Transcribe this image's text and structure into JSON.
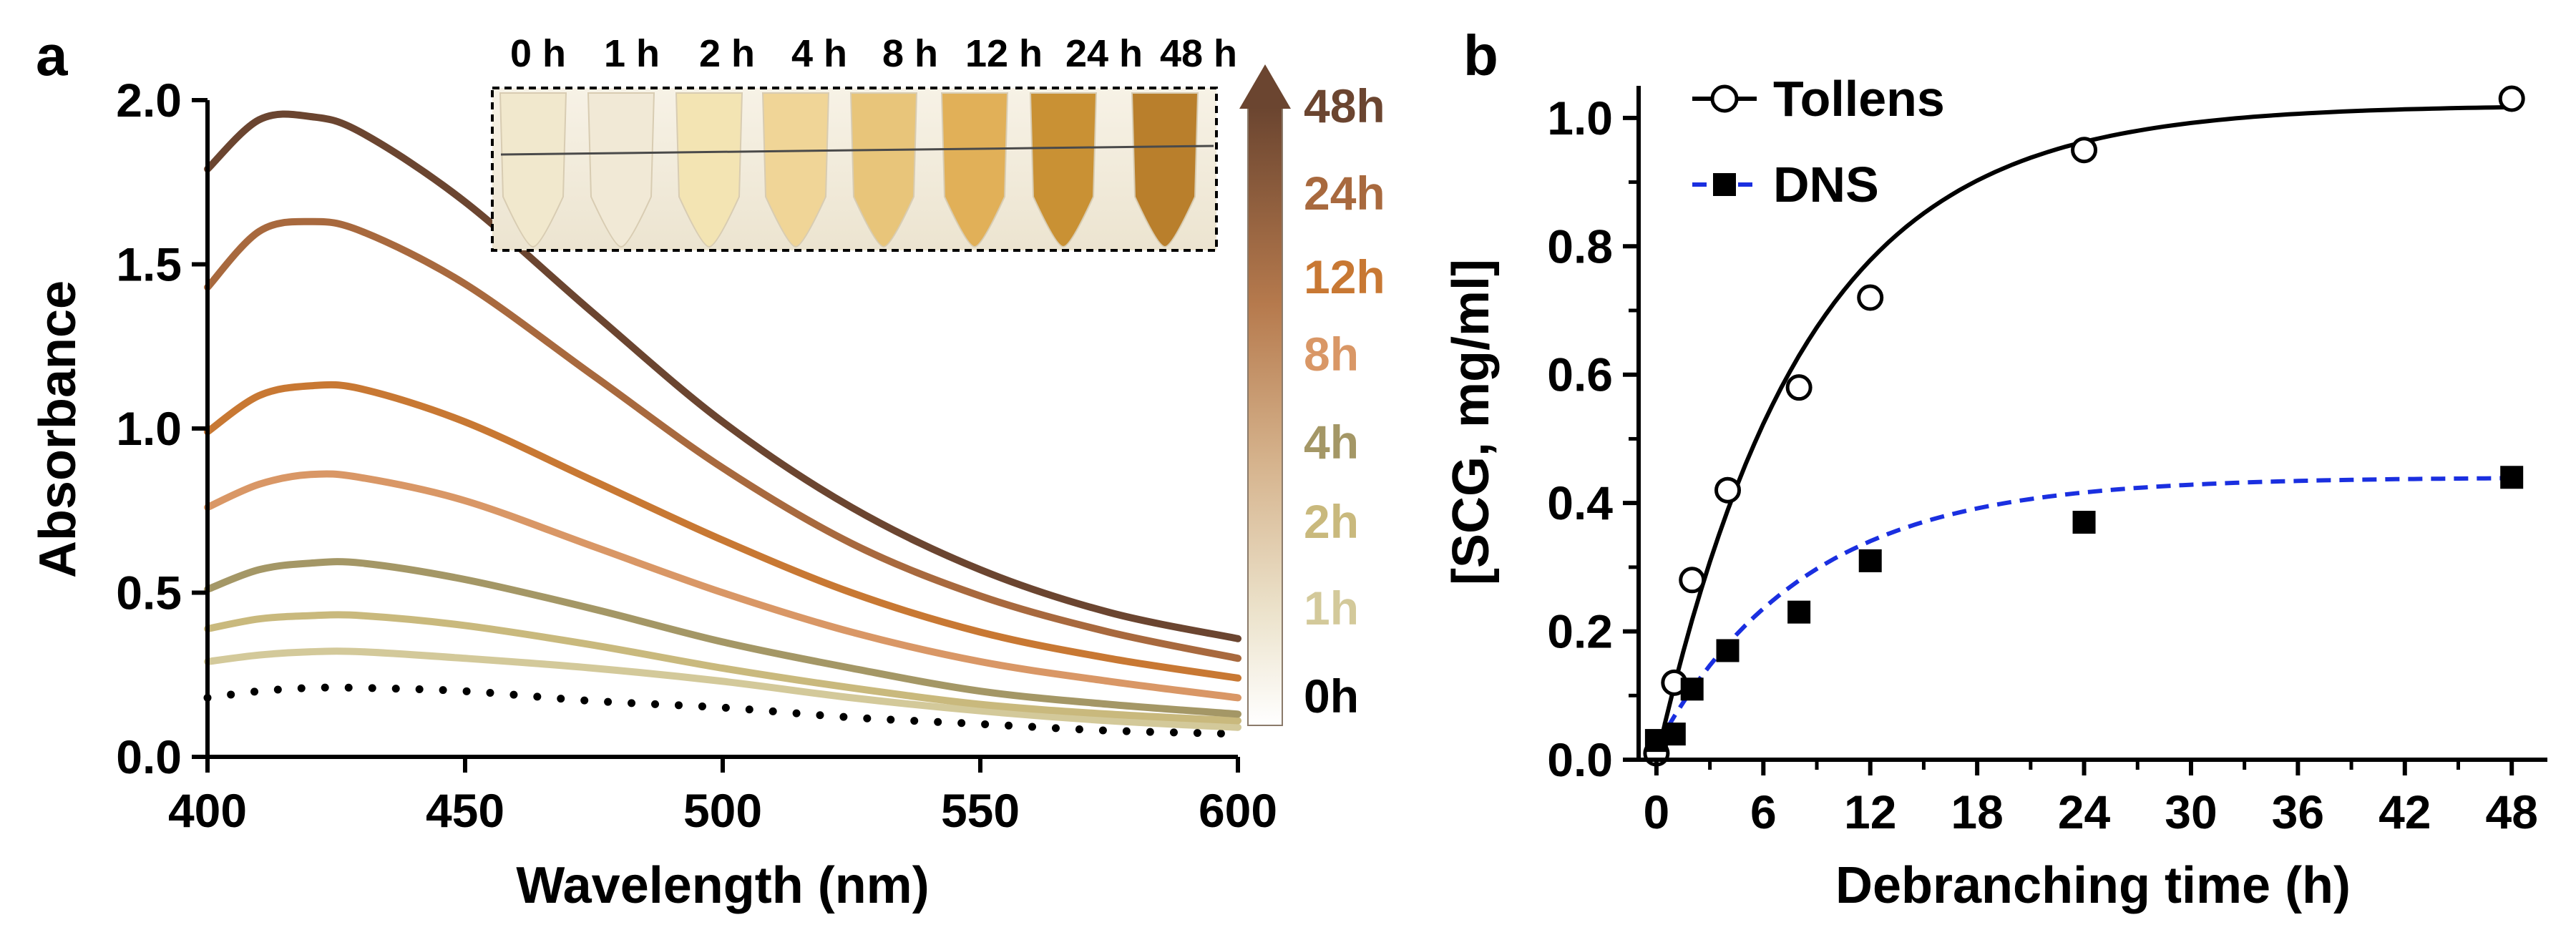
{
  "chart_data": [
    {
      "panel": "a",
      "type": "line",
      "xlabel": "Wavelength (nm)",
      "ylabel": "Absorbance",
      "xlim": [
        400,
        600
      ],
      "ylim": [
        0,
        2.0
      ],
      "xticks": [
        "400",
        "450",
        "500",
        "550",
        "600"
      ],
      "yticks": [
        "0.0",
        "0.5",
        "1.0",
        "1.5",
        "2.0"
      ],
      "x": [
        400,
        410,
        420,
        430,
        450,
        475,
        500,
        525,
        550,
        575,
        600
      ],
      "series": [
        {
          "name": "0h",
          "color": "#000000",
          "style": "dotted",
          "values": [
            0.18,
            0.2,
            0.21,
            0.21,
            0.2,
            0.17,
            0.15,
            0.12,
            0.1,
            0.08,
            0.07
          ]
        },
        {
          "name": "1h",
          "color": "#d3c99a",
          "style": "solid",
          "values": [
            0.29,
            0.31,
            0.32,
            0.32,
            0.3,
            0.27,
            0.23,
            0.18,
            0.14,
            0.11,
            0.09
          ]
        },
        {
          "name": "2h",
          "color": "#c9b97d",
          "style": "solid",
          "values": [
            0.39,
            0.42,
            0.43,
            0.43,
            0.4,
            0.34,
            0.27,
            0.21,
            0.16,
            0.13,
            0.11
          ]
        },
        {
          "name": "4h",
          "color": "#a49766",
          "style": "solid",
          "values": [
            0.51,
            0.57,
            0.59,
            0.59,
            0.54,
            0.45,
            0.35,
            0.27,
            0.2,
            0.16,
            0.13
          ]
        },
        {
          "name": "8h",
          "color": "#d99766",
          "style": "solid",
          "values": [
            0.76,
            0.83,
            0.86,
            0.85,
            0.78,
            0.64,
            0.5,
            0.38,
            0.29,
            0.23,
            0.18
          ]
        },
        {
          "name": "12h",
          "color": "#c87833",
          "style": "solid",
          "values": [
            0.99,
            1.1,
            1.13,
            1.12,
            1.02,
            0.84,
            0.66,
            0.5,
            0.38,
            0.3,
            0.24
          ]
        },
        {
          "name": "24h",
          "color": "#a8693e",
          "style": "solid",
          "values": [
            1.43,
            1.6,
            1.63,
            1.6,
            1.44,
            1.16,
            0.88,
            0.65,
            0.49,
            0.38,
            0.3
          ]
        },
        {
          "name": "48h",
          "color": "#6b4530",
          "style": "solid",
          "values": [
            1.79,
            1.94,
            1.95,
            1.9,
            1.69,
            1.35,
            1.02,
            0.76,
            0.57,
            0.44,
            0.36
          ]
        }
      ],
      "photo_labels": [
        "0 h",
        "1 h",
        "2 h",
        "4 h",
        "8 h",
        "12 h",
        "24 h",
        "48 h"
      ],
      "tube_colors": [
        "#f1e8cd",
        "#f1e9d6",
        "#f3e4b3",
        "#f0d597",
        "#e8c57a",
        "#e1b058",
        "#c99134",
        "#b97f2c"
      ],
      "colorbar_labels": [
        {
          "text": "48h",
          "color": "#6b4530"
        },
        {
          "text": "24h",
          "color": "#a8693e"
        },
        {
          "text": "12h",
          "color": "#c87833"
        },
        {
          "text": "8h",
          "color": "#d99766"
        },
        {
          "text": "4h",
          "color": "#a49766"
        },
        {
          "text": "2h",
          "color": "#c9b97d"
        },
        {
          "text": "1h",
          "color": "#d3c99a"
        },
        {
          "text": "0h",
          "color": "#000000"
        }
      ]
    },
    {
      "panel": "b",
      "type": "scatter",
      "xlabel": "Debranching time (h)",
      "ylabel": "[SCG, mg/ml]",
      "xlim": [
        -1,
        50
      ],
      "ylim": [
        0,
        1.05
      ],
      "xticks": [
        "0",
        "6",
        "12",
        "18",
        "24",
        "30",
        "36",
        "42",
        "48"
      ],
      "yticks": [
        "0.0",
        "0.2",
        "0.4",
        "0.6",
        "0.8",
        "1.0"
      ],
      "series": [
        {
          "name": "Tollens",
          "marker": "open-circle",
          "line": "solid",
          "color": "#000000",
          "x": [
            0,
            1,
            2,
            4,
            8,
            12,
            24,
            48
          ],
          "y": [
            0.01,
            0.12,
            0.28,
            0.42,
            0.58,
            0.72,
            0.95,
            1.03
          ],
          "fit": {
            "ymax": 1.02,
            "k": 0.12
          }
        },
        {
          "name": "DNS",
          "marker": "filled-square",
          "line": "dashed",
          "color": "#1a2fe0",
          "x": [
            0,
            1,
            2,
            4,
            8,
            12,
            24,
            48
          ],
          "y": [
            0.03,
            0.04,
            0.11,
            0.17,
            0.23,
            0.31,
            0.37,
            0.44
          ],
          "fit": {
            "ymax": 0.44,
            "k": 0.12,
            "y0": 0.02
          }
        }
      ]
    }
  ]
}
